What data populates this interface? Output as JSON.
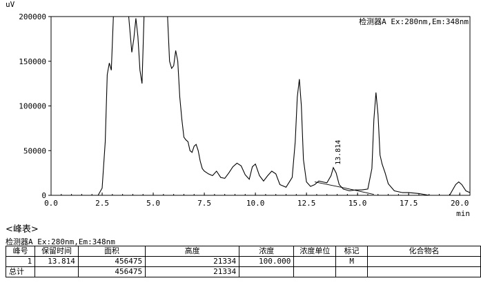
{
  "chart_data": {
    "type": "line",
    "y_unit": "uV",
    "x_unit": "min",
    "xlim": [
      0.0,
      20.5
    ],
    "ylim": [
      0,
      200000
    ],
    "x_ticks": [
      "0.0",
      "2.5",
      "5.0",
      "7.5",
      "10.0",
      "12.5",
      "15.0",
      "17.5",
      "20.0"
    ],
    "y_ticks": [
      "0",
      "50000",
      "100000",
      "150000",
      "200000"
    ],
    "detector_label": "检测器A Ex:280nm,Em:348nm",
    "peak_annotation": {
      "label": "13.814",
      "x": 13.814,
      "y": 31000
    },
    "series": [
      {
        "x": [
          0.0,
          0.5,
          1.0,
          1.5,
          2.0,
          2.3,
          2.5,
          2.65,
          2.75,
          2.85,
          2.95,
          3.05,
          3.2,
          3.4,
          3.6,
          3.7,
          3.8,
          3.95,
          4.05,
          4.15,
          4.25,
          4.35,
          4.45,
          4.55,
          4.65,
          4.8,
          5.0,
          5.4,
          5.6,
          5.7,
          5.8,
          5.9,
          6.0,
          6.1,
          6.2,
          6.3,
          6.4,
          6.5,
          6.6,
          6.7,
          6.8,
          6.9,
          7.0,
          7.1,
          7.2,
          7.3,
          7.4,
          7.5,
          7.7,
          7.9,
          8.1,
          8.3,
          8.5,
          8.7,
          8.9,
          9.1,
          9.3,
          9.5,
          9.7,
          9.85,
          10.0,
          10.2,
          10.4,
          10.6,
          10.8,
          11.0,
          11.2,
          11.5,
          11.8,
          11.95,
          12.05,
          12.15,
          12.25,
          12.35,
          12.5,
          12.7,
          12.9,
          13.1,
          13.3,
          13.5,
          13.7,
          13.814,
          13.95,
          14.1,
          14.3,
          14.6,
          14.9,
          15.2,
          15.5,
          15.7,
          15.8,
          15.9,
          16.0,
          16.1,
          16.2,
          16.35,
          16.5,
          16.8,
          17.2,
          17.5,
          18.0,
          18.5,
          19.0,
          19.5,
          19.8,
          19.95,
          20.1,
          20.3,
          20.5
        ],
        "y": [
          0,
          -1000,
          -1500,
          -2000,
          -1500,
          0,
          8000,
          60000,
          135000,
          148000,
          140000,
          200000,
          200000,
          200000,
          200000,
          200000,
          200000,
          160000,
          175000,
          198000,
          178000,
          140000,
          125000,
          200000,
          200000,
          200000,
          200000,
          200000,
          200000,
          200000,
          150000,
          142000,
          145000,
          162000,
          150000,
          110000,
          85000,
          65000,
          62000,
          60000,
          50000,
          48000,
          55000,
          57000,
          50000,
          38000,
          30000,
          27000,
          24000,
          22000,
          27000,
          20000,
          19000,
          25000,
          32000,
          36000,
          33000,
          23000,
          18000,
          32000,
          35000,
          22000,
          16000,
          22000,
          27000,
          24000,
          12000,
          9000,
          20000,
          60000,
          110000,
          130000,
          100000,
          40000,
          15000,
          10000,
          12000,
          16000,
          15000,
          14000,
          22000,
          31000,
          25000,
          12000,
          7000,
          5000,
          6000,
          6000,
          7000,
          30000,
          85000,
          115000,
          90000,
          45000,
          35000,
          25000,
          13000,
          5000,
          3000,
          3000,
          2000,
          0,
          0,
          0,
          12000,
          15000,
          12000,
          5000,
          3000
        ]
      },
      {
        "x": [
          12.9,
          14.4,
          15.8
        ],
        "y": [
          15000,
          8000,
          1000
        ]
      }
    ]
  },
  "table_section": {
    "heading": "<峰表>",
    "detector": "检测器A Ex:280nm,Em:348nm",
    "headers": [
      "峰号",
      "保留时间",
      "面积",
      "高度",
      "浓度",
      "浓度单位",
      "标记",
      "化合物名"
    ],
    "row1": {
      "peak_no": "1",
      "ret_time": "13.814",
      "area": "456475",
      "height": "21334",
      "conc": "100.000",
      "unit": "",
      "mark": "M",
      "compound": ""
    },
    "total": {
      "label": "总计",
      "area": "456475",
      "height": "21334"
    }
  }
}
